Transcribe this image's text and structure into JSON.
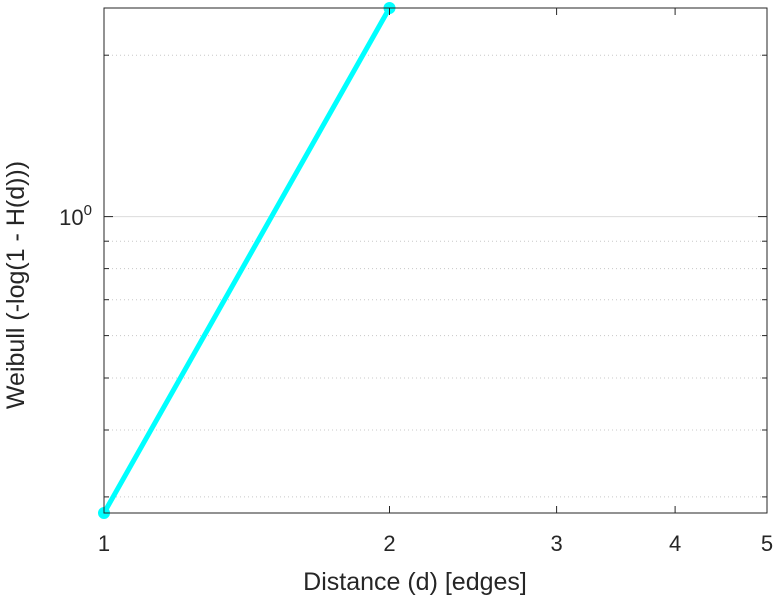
{
  "chart_data": {
    "type": "line",
    "xlabel": "Distance (d) [edges]",
    "ylabel": "Weibull (-log(1 - H(d)))",
    "x_scale": "log",
    "y_scale": "log",
    "xlim": [
      1,
      5
    ],
    "ylim": [
      0.28,
      2.45
    ],
    "x_ticks": [
      1,
      2,
      3,
      4,
      5
    ],
    "x_tick_labels": [
      "1",
      "2",
      "3",
      "4",
      "5"
    ],
    "y_major_tick": {
      "base": "10",
      "exponent": "0"
    },
    "y_minor_gridlines": [
      0.3,
      0.4,
      0.5,
      0.6,
      0.7,
      0.8,
      0.9,
      2
    ],
    "grid": true,
    "series": [
      {
        "color": "#00ffff",
        "marker": "circle",
        "x": [
          1,
          2
        ],
        "y": [
          0.28,
          2.45
        ]
      }
    ]
  }
}
